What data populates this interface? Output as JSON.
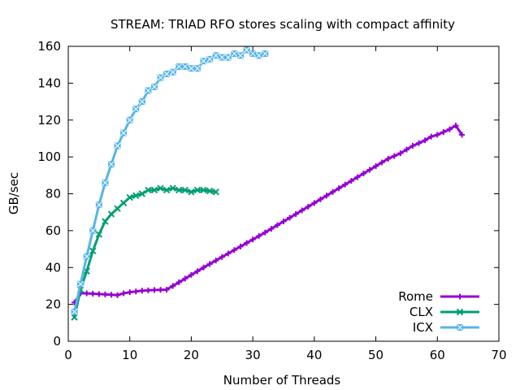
{
  "chart_data": {
    "type": "line",
    "title": "STREAM: TRIAD RFO stores scaling with compact affinity",
    "xlabel": "Number of Threads",
    "ylabel": "GB/sec",
    "xlim": [
      0,
      70
    ],
    "ylim": [
      0,
      160
    ],
    "xticks": [
      0,
      10,
      20,
      30,
      40,
      50,
      60,
      70
    ],
    "yticks": [
      0,
      20,
      40,
      60,
      80,
      100,
      120,
      140,
      160
    ],
    "grid": false,
    "legend_position": "bottom-right",
    "series": [
      {
        "name": "Rome",
        "color": "#9400d3",
        "marker": "plus",
        "x": [
          1,
          2,
          3,
          4,
          5,
          6,
          7,
          8,
          9,
          10,
          11,
          12,
          13,
          14,
          15,
          16,
          17,
          18,
          19,
          20,
          21,
          22,
          23,
          24,
          25,
          26,
          27,
          28,
          29,
          30,
          31,
          32,
          33,
          34,
          35,
          36,
          37,
          38,
          39,
          40,
          41,
          42,
          43,
          44,
          45,
          46,
          47,
          48,
          49,
          50,
          51,
          52,
          53,
          54,
          55,
          56,
          57,
          58,
          59,
          60,
          61,
          62,
          63,
          64
        ],
        "y": [
          21,
          26,
          26,
          25.8,
          25.6,
          25.4,
          25.2,
          25,
          26,
          26.6,
          27,
          27.4,
          27.6,
          27.8,
          27.9,
          28,
          30,
          32,
          34,
          36,
          38,
          40,
          41.9,
          43.8,
          45.7,
          47.6,
          49.5,
          51.4,
          53.3,
          55.2,
          57.1,
          59,
          61,
          63,
          65,
          67,
          69,
          71,
          73,
          75,
          77,
          79,
          81,
          83,
          85,
          87,
          89,
          91,
          93,
          95,
          97,
          99,
          100.5,
          102,
          104,
          106,
          107.5,
          109,
          111,
          112,
          113.5,
          115,
          117,
          112
        ]
      },
      {
        "name": "CLX",
        "color": "#009e73",
        "marker": "x",
        "x": [
          1,
          2,
          3,
          4,
          5,
          6,
          7,
          8,
          9,
          10,
          11,
          12,
          13,
          14,
          15,
          16,
          17,
          18,
          19,
          20,
          21,
          22,
          23,
          24
        ],
        "y": [
          13,
          28,
          38,
          49,
          58,
          65,
          69,
          72,
          75,
          78,
          79,
          80,
          82,
          82,
          83,
          82,
          83,
          82,
          82,
          81,
          82,
          82,
          81.5,
          81
        ]
      },
      {
        "name": "ICX",
        "color": "#56b4e9",
        "marker": "boxed-x",
        "x": [
          1,
          2,
          3,
          4,
          5,
          6,
          7,
          8,
          9,
          10,
          11,
          12,
          13,
          14,
          15,
          16,
          17,
          18,
          19,
          20,
          21,
          22,
          23,
          24,
          25,
          26,
          27,
          28,
          29,
          30,
          31,
          32
        ],
        "y": [
          16,
          31,
          46,
          60,
          74,
          86,
          96,
          106,
          113,
          120,
          126,
          130,
          136,
          138,
          143,
          145,
          146,
          149,
          149,
          148,
          148,
          152,
          153,
          155,
          154,
          154,
          156,
          155,
          158,
          156,
          155,
          156
        ]
      }
    ]
  }
}
